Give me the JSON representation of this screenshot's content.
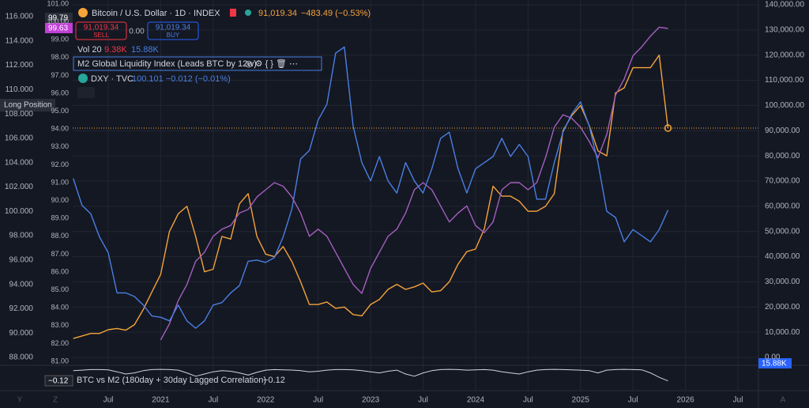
{
  "chart_data": {
    "type": "line",
    "categories": [
      null,
      null,
      null,
      null,
      "Jul",
      null,
      null,
      null,
      null,
      null,
      "2021",
      null,
      null,
      null,
      null,
      null,
      "Jul",
      null,
      null,
      null,
      null,
      null,
      "2022",
      null,
      null,
      null,
      null,
      null,
      "Jul",
      null,
      null,
      null,
      null,
      null,
      "2023",
      null,
      null,
      null,
      null,
      null,
      "Jul",
      null,
      null,
      null,
      null,
      null,
      "2024",
      null,
      null,
      null,
      null,
      null,
      "Jul",
      null,
      null,
      null,
      null,
      null,
      "2025",
      null,
      null,
      null,
      null,
      null,
      "Jul",
      null,
      null,
      null,
      null,
      null,
      "2026",
      null,
      null,
      null,
      null,
      null,
      "Jul",
      null,
      null
    ],
    "series": [
      {
        "name": "Bitcoin / U.S. Dollar · 1D · INDEX",
        "color": "#f5a33a",
        "axis": "y2",
        "values": [
          7500,
          8500,
          9500,
          9500,
          11000,
          11500,
          10800,
          13000,
          19000,
          26000,
          33000,
          50000,
          57000,
          60000,
          48000,
          34000,
          35000,
          48000,
          47000,
          61000,
          65000,
          48000,
          41000,
          40000,
          44000,
          38000,
          30000,
          21000,
          21000,
          22000,
          19500,
          20000,
          17000,
          16500,
          21000,
          23000,
          27000,
          29000,
          27000,
          28000,
          29500,
          26000,
          26500,
          30000,
          37000,
          42000,
          43000,
          51000,
          68000,
          64000,
          64000,
          62000,
          58000,
          58000,
          60000,
          65000,
          90000,
          96000,
          100000,
          92000,
          82000,
          80000,
          105000,
          107000,
          115000,
          115000,
          115000,
          120000,
          91019.34,
          null,
          null,
          null,
          null,
          null,
          null,
          null,
          null,
          null,
          null
        ]
      },
      {
        "name": "M2 Global Liquidity Index (Leads BTC by 12w)",
        "color": "#a45fbf",
        "axis": "y3",
        "values": [
          null,
          null,
          null,
          null,
          null,
          null,
          null,
          null,
          null,
          null,
          82.2,
          83.1,
          84.4,
          85.3,
          86.6,
          87.1,
          88,
          88.4,
          88.6,
          89.3,
          89.5,
          90.2,
          90.6,
          91,
          90.8,
          90.2,
          89.3,
          88,
          88.4,
          88,
          87.1,
          86.2,
          85.3,
          84.8,
          86.2,
          87.1,
          88,
          88.4,
          89.3,
          90.6,
          91,
          90.6,
          89.7,
          88.8,
          89.3,
          89.7,
          88.6,
          88.2,
          88.8,
          90.6,
          91,
          91,
          90.6,
          91,
          92.4,
          94.1,
          94.8,
          94.6,
          94.1,
          93.3,
          92.4,
          93.7,
          95.9,
          96.8,
          98.1,
          98.6,
          99.2,
          99.7,
          99.63,
          null,
          null,
          null,
          null,
          null,
          null,
          null,
          null,
          null,
          null
        ]
      },
      {
        "name": "DXY · TVC",
        "color": "#4a7fe3",
        "axis": "y",
        "values": [
          102.7,
          100.5,
          99.8,
          97.9,
          96.6,
          93.3,
          93.3,
          93.0,
          92.3,
          91.4,
          91.3,
          91.0,
          92.3,
          91.0,
          90.4,
          91.0,
          92.3,
          92.5,
          93.3,
          93.9,
          95.9,
          96.0,
          95.8,
          96.2,
          97.9,
          100.2,
          104.3,
          105.0,
          107.5,
          108.8,
          113.0,
          113.5,
          107.0,
          104.0,
          102.5,
          104.5,
          102.5,
          101.5,
          104.0,
          102.5,
          101.5,
          103.5,
          106.0,
          106.5,
          103.5,
          101.5,
          103.5,
          104.0,
          104.5,
          106.0,
          104.5,
          105.5,
          104.5,
          101.0,
          101.0,
          104.0,
          106.5,
          108.0,
          109.0,
          107.0,
          104.0,
          100.0,
          99.5,
          97.5,
          98.5,
          98.0,
          97.5,
          98.5,
          100.101,
          null,
          null,
          null,
          null,
          null,
          null,
          null,
          null,
          null,
          null
        ]
      },
      {
        "name": "BTC vs M2 (180day + 30day Lagged Correlation)",
        "color": "#d1d4dc",
        "axis": "corr",
        "values": [
          0.8,
          0.85,
          0.9,
          0.9,
          0.88,
          0.7,
          0.5,
          0.6,
          0.8,
          0.9,
          0.92,
          0.9,
          0.85,
          0.6,
          0.3,
          0.5,
          0.7,
          0.8,
          0.75,
          0.6,
          0.4,
          0.65,
          0.85,
          0.9,
          0.88,
          0.86,
          0.8,
          0.7,
          0.75,
          0.85,
          0.9,
          0.9,
          0.88,
          0.8,
          0.7,
          0.6,
          0.75,
          0.85,
          0.5,
          0.3,
          0.6,
          0.8,
          0.9,
          0.92,
          0.9,
          0.85,
          0.88,
          0.9,
          0.85,
          0.7,
          0.6,
          0.5,
          0.7,
          0.85,
          0.9,
          0.92,
          0.9,
          0.88,
          0.85,
          0.8,
          0.6,
          0.85,
          0.9,
          0.92,
          0.9,
          0.88,
          0.6,
          0.2,
          -0.12,
          null,
          null,
          null,
          null,
          null,
          null,
          null,
          null,
          null,
          null
        ]
      }
    ],
    "ylim": [
      88,
      116
    ],
    "yticks": [
      {
        "value": 88,
        "label": "88.000"
      },
      {
        "value": 90,
        "label": "90.000"
      },
      {
        "value": 92,
        "label": "92.000"
      },
      {
        "value": 94,
        "label": "94.000"
      },
      {
        "value": 96,
        "label": "96.000"
      },
      {
        "value": 98,
        "label": "98.000"
      },
      {
        "value": 100,
        "label": "100.000"
      },
      {
        "value": 102,
        "label": "102.000"
      },
      {
        "value": 104,
        "label": "104.000"
      },
      {
        "value": 106,
        "label": "106.000"
      },
      {
        "value": 108,
        "label": "108.000"
      },
      {
        "value": 110,
        "label": "110.000"
      },
      {
        "value": 112,
        "label": "112.000"
      },
      {
        "value": 114,
        "label": "114.000"
      },
      {
        "value": 116,
        "label": "116.000"
      }
    ],
    "y2lim": [
      0,
      140000
    ],
    "y2ticks": [
      {
        "value": 0,
        "label": "0.00"
      },
      {
        "value": 10000,
        "label": "10,000.00"
      },
      {
        "value": 20000,
        "label": "20,000.00"
      },
      {
        "value": 30000,
        "label": "30,000.00"
      },
      {
        "value": 40000,
        "label": "40,000.00"
      },
      {
        "value": 50000,
        "label": "50,000.00"
      },
      {
        "value": 60000,
        "label": "60,000.00"
      },
      {
        "value": 70000,
        "label": "70,000.00"
      },
      {
        "value": 80000,
        "label": "80,000.00"
      },
      {
        "value": 90000,
        "label": "90,000.00"
      },
      {
        "value": 100000,
        "label": "100,000.00"
      },
      {
        "value": 110000,
        "label": "110,000.00"
      },
      {
        "value": 120000,
        "label": "120,000.00"
      },
      {
        "value": 130000,
        "label": "130,000.00"
      },
      {
        "value": 140000,
        "label": "140,000.00"
      }
    ],
    "y3lim": [
      81,
      101
    ],
    "y3ticks": [
      {
        "value": 81,
        "label": "81.00"
      },
      {
        "value": 82,
        "label": "82.00"
      },
      {
        "value": 83,
        "label": "83.00"
      },
      {
        "value": 84,
        "label": "84.00"
      },
      {
        "value": 85,
        "label": "85.00"
      },
      {
        "value": 86,
        "label": "86.00"
      },
      {
        "value": 87,
        "label": "87.00"
      },
      {
        "value": 88,
        "label": "88.00"
      },
      {
        "value": 89,
        "label": "89.00"
      },
      {
        "value": 90,
        "label": "90.00"
      },
      {
        "value": 91,
        "label": "91.00"
      },
      {
        "value": 92,
        "label": "92.00"
      },
      {
        "value": 93,
        "label": "93.00"
      },
      {
        "value": 94,
        "label": "94.00"
      },
      {
        "value": 95,
        "label": "95.00"
      },
      {
        "value": 96,
        "label": "96.00"
      },
      {
        "value": 97,
        "label": "97.00"
      },
      {
        "value": 98,
        "label": "98.00"
      },
      {
        "value": 99,
        "label": "99.00"
      },
      {
        "value": 100,
        "label": "100.00"
      },
      {
        "value": 101,
        "label": "101.00"
      }
    ],
    "corr_ylim": [
      -1,
      1
    ],
    "grid": true
  },
  "ui": {
    "price": "91,019.34",
    "change": "−483.49 (−0.53%)",
    "sell_price": "91,019.34",
    "sell": "SELL",
    "spread": "0.00",
    "buy_price": "91,019.34",
    "buy": "BUY",
    "vol_label": "Vol 20",
    "vol_a": "9.38K",
    "vol_b": "15.88K",
    "dxy_quote": "100.101 −0.012 (−0.01%)",
    "tag_a": "99.79",
    "tag_b": "99.63",
    "long_position": "Long Position",
    "vol_tag": "15.88K",
    "corr_box": "−0.12",
    "corr_value": "−0.12",
    "nav": [
      "Y",
      "Z",
      "A"
    ]
  }
}
